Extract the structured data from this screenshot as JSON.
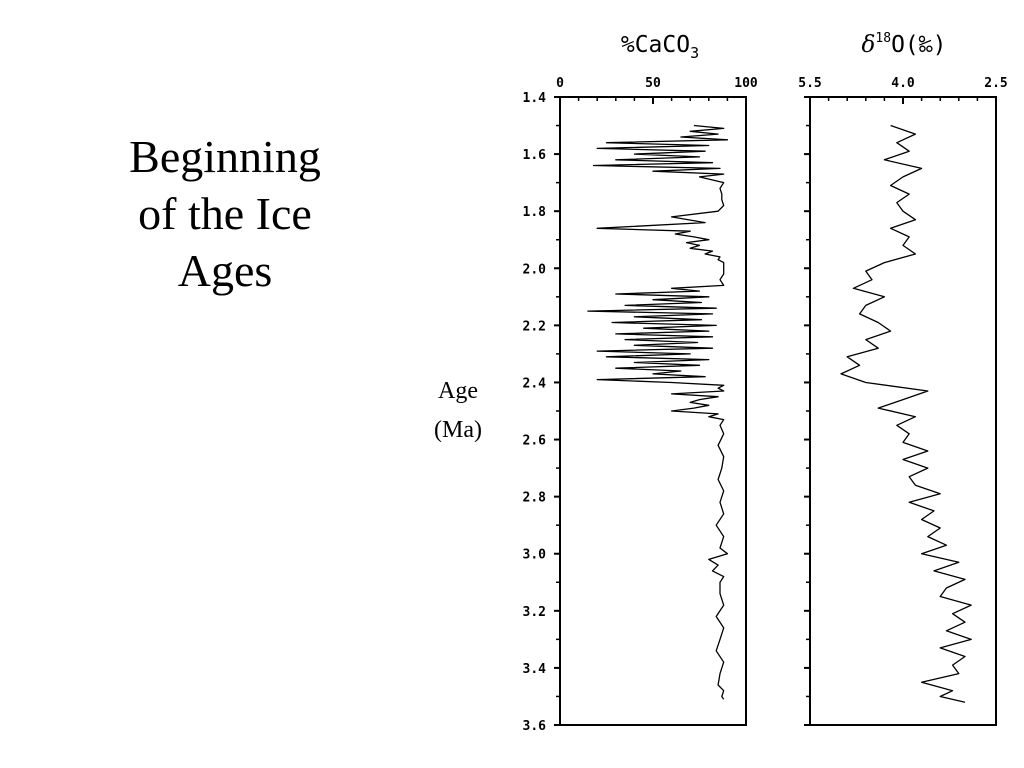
{
  "slide": {
    "title_lines": [
      "Beginning",
      "of the Ice",
      "Ages"
    ]
  },
  "chart_data": [
    {
      "type": "line",
      "title": "%CaCO",
      "title_subscript": "3",
      "xlim": [
        0,
        100
      ],
      "x_ticks": [
        "0",
        "50",
        "100"
      ],
      "ylim": [
        1.4,
        3.6
      ],
      "y_ticks": [
        "1.4",
        "1.6",
        "1.8",
        "2.0",
        "2.2",
        "2.4",
        "2.6",
        "2.8",
        "3.0",
        "3.2",
        "3.4",
        "3.6"
      ],
      "ylabel": "Age (Ma)",
      "ylabel_lines": [
        "Age",
        "(Ma)"
      ],
      "series": [
        {
          "y": [
            1.5,
            1.51,
            1.52,
            1.53,
            1.54,
            1.55,
            1.56,
            1.57,
            1.58,
            1.59,
            1.6,
            1.61,
            1.62,
            1.63,
            1.64,
            1.65,
            1.66,
            1.67,
            1.68,
            1.7,
            1.72,
            1.74,
            1.76,
            1.78,
            1.8,
            1.82,
            1.84,
            1.86,
            1.87,
            1.88,
            1.89,
            1.9,
            1.91,
            1.92,
            1.93,
            1.94,
            1.95,
            1.96,
            1.97,
            1.98,
            2.0,
            2.02,
            2.04,
            2.06,
            2.07,
            2.08,
            2.09,
            2.1,
            2.11,
            2.12,
            2.13,
            2.14,
            2.15,
            2.16,
            2.17,
            2.18,
            2.19,
            2.2,
            2.21,
            2.22,
            2.23,
            2.24,
            2.25,
            2.26,
            2.27,
            2.28,
            2.29,
            2.3,
            2.31,
            2.32,
            2.33,
            2.34,
            2.35,
            2.36,
            2.37,
            2.38,
            2.39,
            2.4,
            2.41,
            2.42,
            2.43,
            2.44,
            2.45,
            2.46,
            2.47,
            2.48,
            2.49,
            2.5,
            2.51,
            2.52,
            2.53,
            2.55,
            2.58,
            2.62,
            2.66,
            2.7,
            2.74,
            2.78,
            2.82,
            2.86,
            2.9,
            2.94,
            2.98,
            3.0,
            3.02,
            3.04,
            3.06,
            3.08,
            3.1,
            3.14,
            3.18,
            3.22,
            3.26,
            3.3,
            3.34,
            3.38,
            3.42,
            3.46,
            3.48,
            3.5,
            3.51
          ],
          "x": [
            72,
            88,
            70,
            85,
            65,
            90,
            25,
            80,
            20,
            78,
            40,
            75,
            30,
            82,
            18,
            86,
            50,
            88,
            75,
            88,
            86,
            87,
            87,
            88,
            85,
            60,
            78,
            20,
            70,
            62,
            72,
            80,
            68,
            75,
            70,
            82,
            78,
            86,
            85,
            88,
            88,
            88,
            86,
            88,
            60,
            75,
            30,
            80,
            50,
            76,
            35,
            84,
            15,
            82,
            40,
            76,
            28,
            84,
            45,
            80,
            30,
            82,
            35,
            74,
            40,
            82,
            20,
            70,
            25,
            80,
            40,
            75,
            30,
            65,
            50,
            78,
            20,
            60,
            88,
            85,
            88,
            60,
            85,
            75,
            70,
            80,
            72,
            60,
            85,
            80,
            88,
            86,
            88,
            85,
            88,
            87,
            85,
            88,
            86,
            88,
            84,
            88,
            86,
            90,
            80,
            85,
            82,
            88,
            86,
            86,
            88,
            84,
            88,
            86,
            84,
            88,
            86,
            85,
            88,
            87,
            88
          ]
        }
      ]
    },
    {
      "type": "line",
      "title": "δ18O(‰)",
      "title_prefix": "δ",
      "title_superscript": "18",
      "title_suffix": "O(‰)",
      "xlim": [
        5.5,
        2.5
      ],
      "x_ticks": [
        "5.5",
        "4.0",
        "2.5"
      ],
      "ylim": [
        1.4,
        3.6
      ],
      "series": [
        {
          "y": [
            1.5,
            1.53,
            1.56,
            1.59,
            1.62,
            1.65,
            1.68,
            1.71,
            1.74,
            1.77,
            1.8,
            1.83,
            1.86,
            1.89,
            1.92,
            1.95,
            1.98,
            2.01,
            2.04,
            2.07,
            2.1,
            2.13,
            2.16,
            2.19,
            2.22,
            2.25,
            2.28,
            2.31,
            2.34,
            2.37,
            2.4,
            2.43,
            2.46,
            2.49,
            2.52,
            2.55,
            2.58,
            2.61,
            2.64,
            2.67,
            2.7,
            2.73,
            2.76,
            2.79,
            2.82,
            2.85,
            2.88,
            2.91,
            2.94,
            2.97,
            3.0,
            3.03,
            3.06,
            3.09,
            3.12,
            3.15,
            3.18,
            3.21,
            3.24,
            3.27,
            3.3,
            3.33,
            3.36,
            3.39,
            3.42,
            3.45,
            3.48,
            3.5,
            3.52
          ],
          "x": [
            4.2,
            3.8,
            4.1,
            3.9,
            4.3,
            3.7,
            4.0,
            4.2,
            3.9,
            4.1,
            4.0,
            3.8,
            4.2,
            3.9,
            4.0,
            3.8,
            4.3,
            4.6,
            4.5,
            4.8,
            4.3,
            4.6,
            4.7,
            4.4,
            4.2,
            4.6,
            4.4,
            4.9,
            4.7,
            5.0,
            4.6,
            3.6,
            4.0,
            4.4,
            3.8,
            4.1,
            3.9,
            4.0,
            3.6,
            4.0,
            3.6,
            3.9,
            3.8,
            3.4,
            3.9,
            3.5,
            3.7,
            3.4,
            3.6,
            3.3,
            3.7,
            3.1,
            3.5,
            3.0,
            3.3,
            3.4,
            2.9,
            3.2,
            3.0,
            3.3,
            2.9,
            3.4,
            3.0,
            3.2,
            3.1,
            3.7,
            3.2,
            3.4,
            3.0
          ]
        }
      ]
    }
  ]
}
